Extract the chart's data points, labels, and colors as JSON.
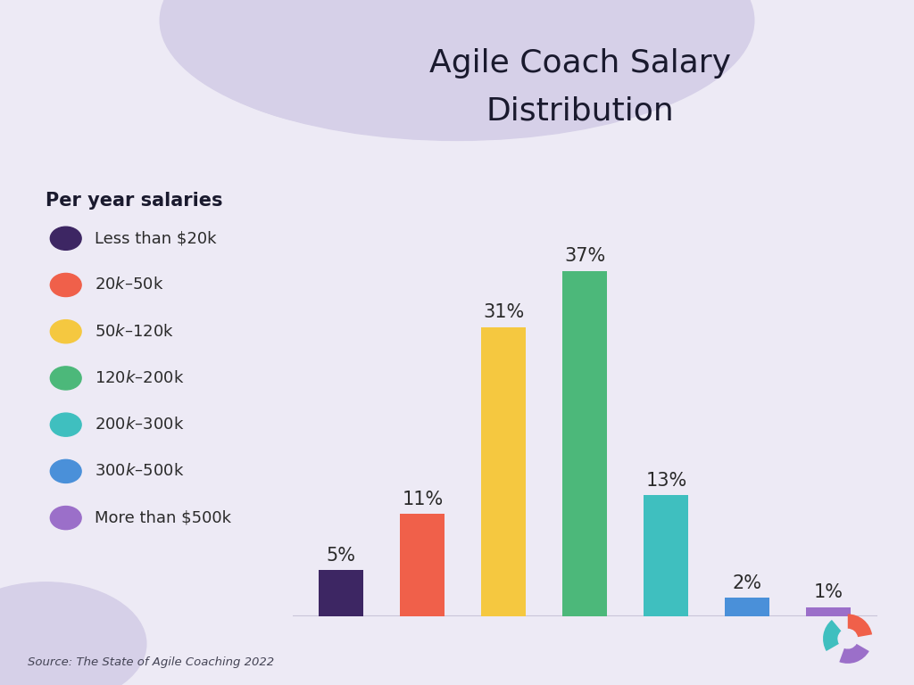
{
  "title_line1": "Agile Coach Salary",
  "title_line2": "Distribution",
  "categories": [
    "Less than $20k",
    "$20k – $50k",
    "$50k – $120k",
    "$120k – $200k",
    "$200k – $300k",
    "$300k – $500k",
    "More than $500k"
  ],
  "values": [
    5,
    11,
    31,
    37,
    13,
    2,
    1
  ],
  "bar_colors": [
    "#3d2663",
    "#f0604a",
    "#f5c840",
    "#4cb87a",
    "#3fbfbf",
    "#4a90d9",
    "#9b6fc9"
  ],
  "legend_colors": [
    "#3d2663",
    "#f0604a",
    "#f5c840",
    "#4cb87a",
    "#3fbfbf",
    "#4a90d9",
    "#9b6fc9"
  ],
  "background_color": "#edeaf5",
  "blob_color": "#d6d0e8",
  "title_fontsize": 26,
  "label_fontsize": 15,
  "legend_fontsize": 13,
  "legend_title_fontsize": 15,
  "source_text": "Source: The State of Agile Coaching 2022",
  "legend_title": "Per year salaries",
  "baseline_color": "#c8c4d8"
}
